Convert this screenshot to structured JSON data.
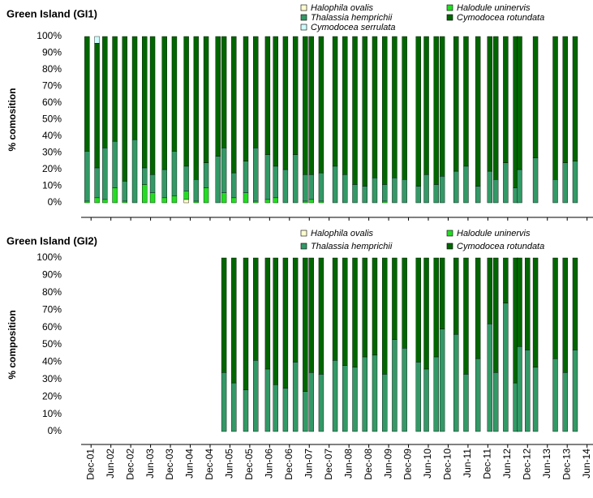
{
  "chart_data": [
    {
      "type": "bar",
      "stacked": true,
      "title": "Green Island (GI1)",
      "ylabel": "% comosition",
      "x": [
        -0.2,
        0.3,
        0.7,
        1.2,
        1.7,
        2.2,
        2.7,
        3.1,
        3.7,
        4.2,
        4.8,
        5.3,
        5.8,
        6.4,
        6.7,
        7.2,
        7.8,
        8.3,
        8.9,
        9.3,
        9.8,
        10.3,
        10.8,
        11.1,
        11.6,
        12.3,
        12.8,
        13.3,
        13.8,
        14.3,
        14.8,
        15.3,
        15.8,
        16.5,
        16.9,
        17.4,
        17.7,
        18.4,
        18.9,
        19.5,
        20.1,
        20.4,
        20.9,
        21.4,
        21.6,
        22.4,
        23.4,
        23.9,
        24.4
      ],
      "series": [
        {
          "name": "Halophila ovalis",
          "color": "#ffffcc",
          "values": [
            0,
            0,
            0,
            0,
            0,
            0,
            0,
            0,
            0,
            0,
            2,
            0,
            0,
            0,
            0,
            0,
            0,
            0,
            0,
            0,
            0,
            0,
            0,
            0,
            0,
            0,
            0,
            0,
            0,
            0,
            0,
            0,
            0,
            0,
            0,
            0,
            0,
            0,
            0,
            0,
            0,
            0,
            0,
            0,
            0,
            0,
            0,
            0,
            0
          ]
        },
        {
          "name": "Halodule uninervis",
          "color": "#22dd22",
          "values": [
            1,
            3,
            2,
            9,
            1,
            0,
            11,
            6,
            3,
            4,
            5,
            1,
            9,
            0,
            6,
            3,
            6,
            1,
            2,
            3,
            0,
            0,
            1,
            2,
            1,
            0,
            0,
            0,
            0,
            0,
            1,
            0,
            0,
            0,
            0,
            0,
            0,
            0,
            0,
            0,
            0,
            0,
            0,
            0,
            0,
            0,
            0,
            0,
            0
          ]
        },
        {
          "name": "Thalassia hemprichii",
          "color": "#339966",
          "values": [
            30,
            18,
            31,
            28,
            12,
            38,
            10,
            11,
            17,
            27,
            15,
            13,
            15,
            28,
            27,
            15,
            19,
            32,
            27,
            19,
            20,
            29,
            16,
            15,
            17,
            22,
            17,
            11,
            10,
            15,
            10,
            15,
            14,
            10,
            17,
            11,
            16,
            19,
            22,
            10,
            19,
            14,
            24,
            9,
            20,
            27,
            14,
            24,
            25
          ]
        },
        {
          "name": "Cymodocea rotundata",
          "color": "#006600",
          "values": [
            69,
            75,
            67,
            63,
            87,
            62,
            79,
            83,
            80,
            69,
            78,
            86,
            76,
            72,
            67,
            82,
            75,
            67,
            71,
            78,
            80,
            71,
            83,
            83,
            82,
            78,
            83,
            89,
            90,
            85,
            89,
            85,
            86,
            90,
            83,
            89,
            84,
            81,
            78,
            90,
            81,
            86,
            76,
            91,
            80,
            73,
            86,
            76,
            75
          ]
        },
        {
          "name": "Cymodocea serrulata",
          "color": "#ccffff",
          "values": [
            0,
            4,
            0,
            0,
            0,
            0,
            0,
            0,
            0,
            0,
            0,
            0,
            0,
            0,
            0,
            0,
            0,
            0,
            0,
            0,
            0,
            0,
            0,
            0,
            0,
            0,
            0,
            0,
            0,
            0,
            0,
            0,
            0,
            0,
            0,
            0,
            0,
            0,
            0,
            0,
            0,
            0,
            0,
            0,
            0,
            0,
            0,
            0,
            0
          ]
        }
      ],
      "xlim": [
        -0.5,
        25.3
      ],
      "ylim": [
        0,
        100
      ],
      "yticks": [
        {
          "value": 0,
          "label": "0%"
        },
        {
          "value": 10,
          "label": "10%"
        },
        {
          "value": 20,
          "label": "20%"
        },
        {
          "value": 30,
          "label": "30%"
        },
        {
          "value": 40,
          "label": "40%"
        },
        {
          "value": 50,
          "label": "50%"
        },
        {
          "value": 60,
          "label": "60%"
        },
        {
          "value": 70,
          "label": "70%"
        },
        {
          "value": 80,
          "label": "80%"
        },
        {
          "value": 90,
          "label": "90%"
        },
        {
          "value": 100,
          "label": "100%"
        }
      ]
    },
    {
      "type": "bar",
      "stacked": true,
      "title": "Green Island (GI2)",
      "ylabel": "% composition",
      "x": [
        6.7,
        7.2,
        7.8,
        8.3,
        8.9,
        9.3,
        9.8,
        10.3,
        10.8,
        11.1,
        11.6,
        12.3,
        12.8,
        13.3,
        13.8,
        14.3,
        14.8,
        15.3,
        15.8,
        16.5,
        16.9,
        17.4,
        17.7,
        18.4,
        18.9,
        19.5,
        20.1,
        20.4,
        20.9,
        21.4,
        21.6,
        22.0,
        22.4,
        23.4,
        23.9,
        24.4
      ],
      "series": [
        {
          "name": "Halophila ovalis",
          "color": "#ffffcc",
          "values": [
            0,
            0,
            0,
            0,
            0,
            0,
            0,
            0,
            0,
            0,
            0,
            0,
            0,
            0,
            0,
            0,
            0,
            0,
            0,
            0,
            0,
            0,
            0,
            0,
            0,
            0,
            0,
            0,
            0,
            0,
            0,
            0,
            0,
            0,
            0,
            0
          ]
        },
        {
          "name": "Halodule uninervis",
          "color": "#22dd22",
          "values": [
            0,
            0,
            0,
            0,
            0,
            0,
            0,
            0,
            0,
            0,
            0,
            0,
            0,
            0,
            0,
            0,
            0,
            0,
            0,
            0,
            0,
            0,
            0,
            0,
            0,
            0,
            0,
            0,
            0,
            0,
            0,
            0,
            0,
            0,
            0,
            0
          ]
        },
        {
          "name": "Thalassia hemprichii",
          "color": "#339966",
          "values": [
            34,
            28,
            24,
            41,
            36,
            27,
            25,
            40,
            23,
            34,
            33,
            41,
            38,
            37,
            43,
            44,
            33,
            53,
            48,
            40,
            36,
            43,
            59,
            56,
            33,
            42,
            62,
            34,
            74,
            28,
            49,
            47,
            37,
            42,
            34,
            47
          ]
        },
        {
          "name": "Cymodocea rotundata",
          "color": "#006600",
          "values": [
            66,
            72,
            76,
            59,
            64,
            73,
            75,
            60,
            77,
            66,
            67,
            59,
            62,
            63,
            57,
            56,
            67,
            47,
            52,
            60,
            64,
            57,
            41,
            44,
            67,
            58,
            38,
            66,
            26,
            72,
            51,
            53,
            63,
            58,
            66,
            53
          ]
        }
      ],
      "xlim": [
        -0.5,
        25.3
      ],
      "ylim": [
        0,
        100
      ],
      "yticks": [
        {
          "value": 0,
          "label": "0%"
        },
        {
          "value": 10,
          "label": "10%"
        },
        {
          "value": 20,
          "label": "20%"
        },
        {
          "value": 30,
          "label": "30%"
        },
        {
          "value": 40,
          "label": "40%"
        },
        {
          "value": 50,
          "label": "50%"
        },
        {
          "value": 60,
          "label": "60%"
        },
        {
          "value": 70,
          "label": "70%"
        },
        {
          "value": 80,
          "label": "80%"
        },
        {
          "value": 90,
          "label": "90%"
        },
        {
          "value": 100,
          "label": "100%"
        }
      ],
      "xticks": [
        {
          "value": 0,
          "label": "Dec-01"
        },
        {
          "value": 1,
          "label": "Jun-02"
        },
        {
          "value": 2,
          "label": "Dec-02"
        },
        {
          "value": 3,
          "label": "Jun-03"
        },
        {
          "value": 4,
          "label": "Dec-03"
        },
        {
          "value": 5,
          "label": "Jun-04"
        },
        {
          "value": 6,
          "label": "Dec-04"
        },
        {
          "value": 7,
          "label": "Jun-05"
        },
        {
          "value": 8,
          "label": "Dec-05"
        },
        {
          "value": 9,
          "label": "Jun-06"
        },
        {
          "value": 10,
          "label": "Dec-06"
        },
        {
          "value": 11,
          "label": "Jun-07"
        },
        {
          "value": 12,
          "label": "Dec-07"
        },
        {
          "value": 13,
          "label": "Jun-08"
        },
        {
          "value": 14,
          "label": "Dec-08"
        },
        {
          "value": 15,
          "label": "Jun-09"
        },
        {
          "value": 16,
          "label": "Dec-09"
        },
        {
          "value": 17,
          "label": "Jun-10"
        },
        {
          "value": 18,
          "label": "Dec-10"
        },
        {
          "value": 19,
          "label": "Jun-11"
        },
        {
          "value": 20,
          "label": "Dec-11"
        },
        {
          "value": 21,
          "label": "Jun-12"
        },
        {
          "value": 22,
          "label": "Dec-12"
        },
        {
          "value": 23,
          "label": "Jun-13"
        },
        {
          "value": 24,
          "label": "Dec-13"
        },
        {
          "value": 25,
          "label": "Jun-14"
        }
      ]
    }
  ]
}
